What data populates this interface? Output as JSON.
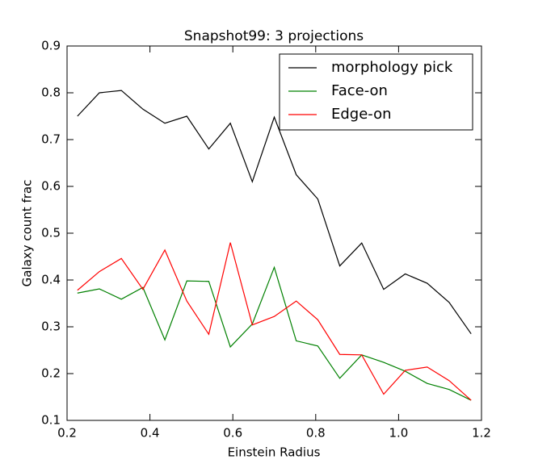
{
  "chart_data": {
    "type": "line",
    "title": "Snapshot99: 3 projections",
    "x_label": "Einstein Radius",
    "y_label": "Galaxy count frac",
    "x": [
      0.225,
      0.278,
      0.331,
      0.383,
      0.436,
      0.489,
      0.542,
      0.594,
      0.647,
      0.7,
      0.753,
      0.805,
      0.858,
      0.911,
      0.964,
      1.016,
      1.069,
      1.122,
      1.175
    ],
    "series": [
      {
        "name": "morphology pick",
        "color": "#000000",
        "values": [
          0.75,
          0.8,
          0.805,
          0.765,
          0.735,
          0.75,
          0.68,
          0.735,
          0.61,
          0.748,
          0.625,
          0.573,
          0.43,
          0.479,
          0.38,
          0.413,
          0.393,
          0.352,
          0.285
        ]
      },
      {
        "name": "Face-on",
        "color": "#008000",
        "values": [
          0.372,
          0.381,
          0.359,
          0.384,
          0.272,
          0.398,
          0.397,
          0.257,
          0.306,
          0.427,
          0.27,
          0.259,
          0.19,
          0.24,
          0.224,
          0.205,
          0.179,
          0.166,
          0.143
        ]
      },
      {
        "name": "Edge-on",
        "color": "#ff0000",
        "values": [
          0.378,
          0.418,
          0.446,
          0.38,
          0.464,
          0.355,
          0.284,
          0.48,
          0.304,
          0.322,
          0.355,
          0.315,
          0.241,
          0.24,
          0.156,
          0.207,
          0.214,
          0.185,
          0.143
        ]
      }
    ],
    "xlim": [
      0.2,
      1.2
    ],
    "xticks": [
      0.2,
      0.4,
      0.6,
      0.8,
      {
        "value": 1.0,
        "label": "1.0"
      },
      1.2
    ],
    "ylim": [
      0.1,
      0.9
    ],
    "yticks": [
      0.1,
      0.2,
      0.3,
      0.4,
      0.5,
      0.6,
      0.7,
      0.8,
      0.9
    ],
    "legend": "upper right",
    "grid": false
  }
}
